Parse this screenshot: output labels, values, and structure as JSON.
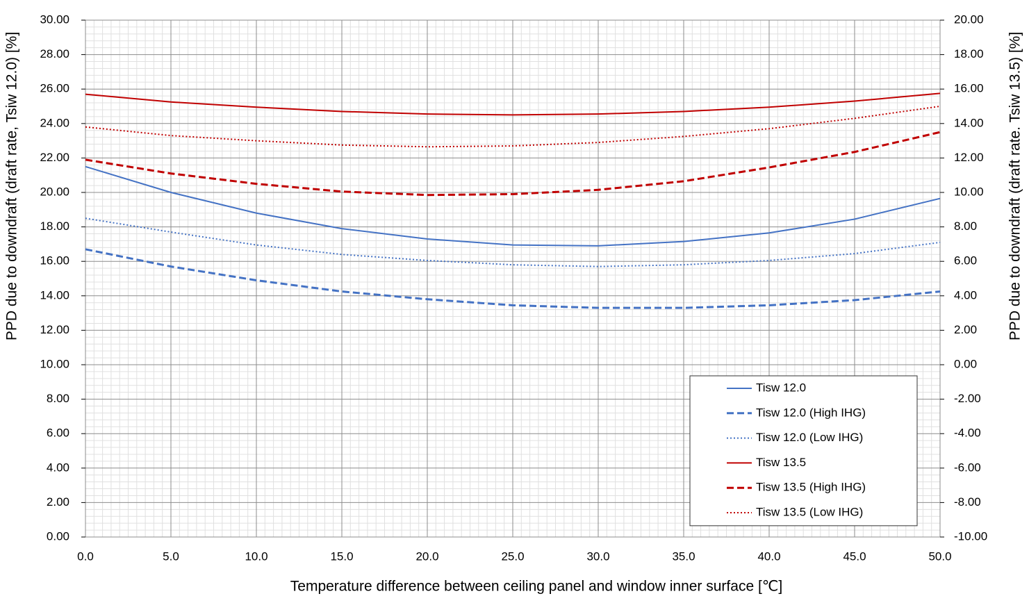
{
  "chart_data": {
    "type": "line",
    "xlabel": "Temperature difference between ceiling panel and window inner surface [℃]",
    "ylabel": "PPD due to downdraft (draft rate, Tsiw 12.0) [%]",
    "y2label": "PPD due to downdraft (draft rate. Tsiw 13.5) [%]",
    "x": [
      0,
      5,
      10,
      15,
      20,
      25,
      30,
      35,
      40,
      45,
      50
    ],
    "xlim": [
      0,
      50
    ],
    "xticks": [
      {
        "value": 0,
        "label": "0.0"
      },
      {
        "value": 5,
        "label": "5.0"
      },
      {
        "value": 10,
        "label": "10.0"
      },
      {
        "value": 15,
        "label": "15.0"
      },
      {
        "value": 20,
        "label": "20.0"
      },
      {
        "value": 25,
        "label": "25.0"
      },
      {
        "value": 30,
        "label": "30.0"
      },
      {
        "value": 35,
        "label": "35.0"
      },
      {
        "value": 40,
        "label": "40.0"
      },
      {
        "value": 45,
        "label": "45.0"
      },
      {
        "value": 50,
        "label": "50.0"
      }
    ],
    "ylim": [
      0,
      30
    ],
    "yticks": [
      {
        "value": 0,
        "label": "0.00"
      },
      {
        "value": 2,
        "label": "2.00"
      },
      {
        "value": 4,
        "label": "4.00"
      },
      {
        "value": 6,
        "label": "6.00"
      },
      {
        "value": 8,
        "label": "8.00"
      },
      {
        "value": 10,
        "label": "10.00"
      },
      {
        "value": 12,
        "label": "12.00"
      },
      {
        "value": 14,
        "label": "14.00"
      },
      {
        "value": 16,
        "label": "16.00"
      },
      {
        "value": 18,
        "label": "18.00"
      },
      {
        "value": 20,
        "label": "20.00"
      },
      {
        "value": 22,
        "label": "22.00"
      },
      {
        "value": 24,
        "label": "24.00"
      },
      {
        "value": 26,
        "label": "26.00"
      },
      {
        "value": 28,
        "label": "28.00"
      },
      {
        "value": 30,
        "label": "30.00"
      }
    ],
    "y2lim": [
      -10,
      20
    ],
    "y2ticks": [
      {
        "value": -10,
        "label": "-10.00"
      },
      {
        "value": -8,
        "label": "-8.00"
      },
      {
        "value": -6,
        "label": "-6.00"
      },
      {
        "value": -4,
        "label": "-4.00"
      },
      {
        "value": -2,
        "label": "-2.00"
      },
      {
        "value": 0,
        "label": "0.00"
      },
      {
        "value": 2,
        "label": "2.00"
      },
      {
        "value": 4,
        "label": "4.00"
      },
      {
        "value": 6,
        "label": "6.00"
      },
      {
        "value": 8,
        "label": "8.00"
      },
      {
        "value": 10,
        "label": "10.00"
      },
      {
        "value": 12,
        "label": "12.00"
      },
      {
        "value": 14,
        "label": "14.00"
      },
      {
        "value": 16,
        "label": "16.00"
      },
      {
        "value": 18,
        "label": "18.00"
      },
      {
        "value": 20,
        "label": "20.00"
      }
    ],
    "grid": true,
    "minor_grid": true,
    "legend": "lower right",
    "series": [
      {
        "name": "Tisw 12.0",
        "color": "#4472c4",
        "dash": "solid",
        "axis": "y",
        "values": [
          21.5,
          20.0,
          18.8,
          17.9,
          17.3,
          16.95,
          16.9,
          17.15,
          17.65,
          18.45,
          19.65
        ]
      },
      {
        "name": "Tisw 12.0 (High IHG)",
        "color": "#4472c4",
        "dash": "dashed",
        "axis": "y",
        "values": [
          16.7,
          15.7,
          14.9,
          14.25,
          13.8,
          13.45,
          13.3,
          13.3,
          13.45,
          13.75,
          14.25
        ]
      },
      {
        "name": "Tisw 12.0 (Low IHG)",
        "color": "#4472c4",
        "dash": "dotted",
        "axis": "y",
        "values": [
          18.5,
          17.7,
          16.95,
          16.4,
          16.05,
          15.8,
          15.7,
          15.8,
          16.05,
          16.45,
          17.1
        ]
      },
      {
        "name": "Tisw 13.5",
        "color": "#c00000",
        "dash": "solid",
        "axis": "y2",
        "values": [
          15.7,
          15.25,
          14.95,
          14.7,
          14.55,
          14.5,
          14.55,
          14.7,
          14.95,
          15.3,
          15.75
        ]
      },
      {
        "name": "Tisw 13.5 (High IHG)",
        "color": "#c00000",
        "dash": "dashed",
        "axis": "y2",
        "values": [
          11.9,
          11.1,
          10.5,
          10.05,
          9.85,
          9.9,
          10.15,
          10.65,
          11.45,
          12.35,
          13.5
        ]
      },
      {
        "name": "Tisw 13.5 (Low IHG)",
        "color": "#c00000",
        "dash": "dotted",
        "axis": "y2",
        "values": [
          13.8,
          13.3,
          13.0,
          12.75,
          12.65,
          12.7,
          12.9,
          13.25,
          13.7,
          14.3,
          15.0
        ]
      }
    ]
  }
}
